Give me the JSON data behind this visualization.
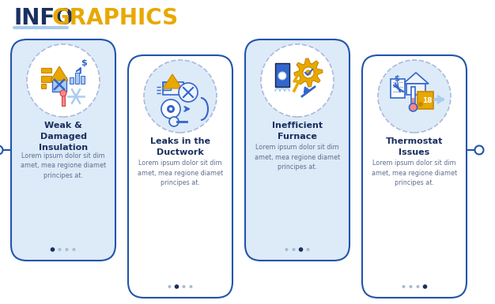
{
  "title_info": "INFO",
  "title_graphics": "GRAPHICS",
  "title_underline_color": "#aaccee",
  "title_info_color": "#1a3060",
  "title_graphics_color": "#e8a800",
  "title_fontsize": 20,
  "cards": [
    {
      "title": "Weak &\nDamaged\nInsulation",
      "body": "Lorem ipsum dolor sit dim\namet, mea regione diamet\nprincipes at.",
      "bg_color": "#ddeaf8",
      "border_color": "#2255aa",
      "dot_active": 0,
      "tall": false
    },
    {
      "title": "Leaks in the\nDuctwork",
      "body": "Lorem ipsum dolor sit dim\namet, mea regione diamet\nprincipes at.",
      "bg_color": "#ffffff",
      "border_color": "#2255aa",
      "dot_active": 1,
      "tall": true
    },
    {
      "title": "Inefficient\nFurnace",
      "body": "Lorem ipsum dolor sit dim\namet, mea regione diamet\nprincipes at.",
      "bg_color": "#ddeaf8",
      "border_color": "#2255aa",
      "dot_active": 2,
      "tall": false
    },
    {
      "title": "Thermostat\nIssues",
      "body": "Lorem ipsum dolor sit dim\namet, mea regione diamet\nprincipes at.",
      "bg_color": "#ffffff",
      "border_color": "#2255aa",
      "dot_active": 3,
      "tall": true
    }
  ],
  "card_title_color": "#1a3060",
  "card_body_color": "#607090",
  "dot_active_color": "#1a3060",
  "dot_inactive_color": "#aabbcc",
  "connector_color": "#2255aa",
  "icon_circle_fill_blue": "#ddeaf8",
  "icon_circle_fill_white": "#ffffff",
  "icon_circle_border": "#aabbdd",
  "bg_color": "#ffffff",
  "blue": "#3366cc",
  "yellow": "#e8a800",
  "light_blue": "#aaccee"
}
